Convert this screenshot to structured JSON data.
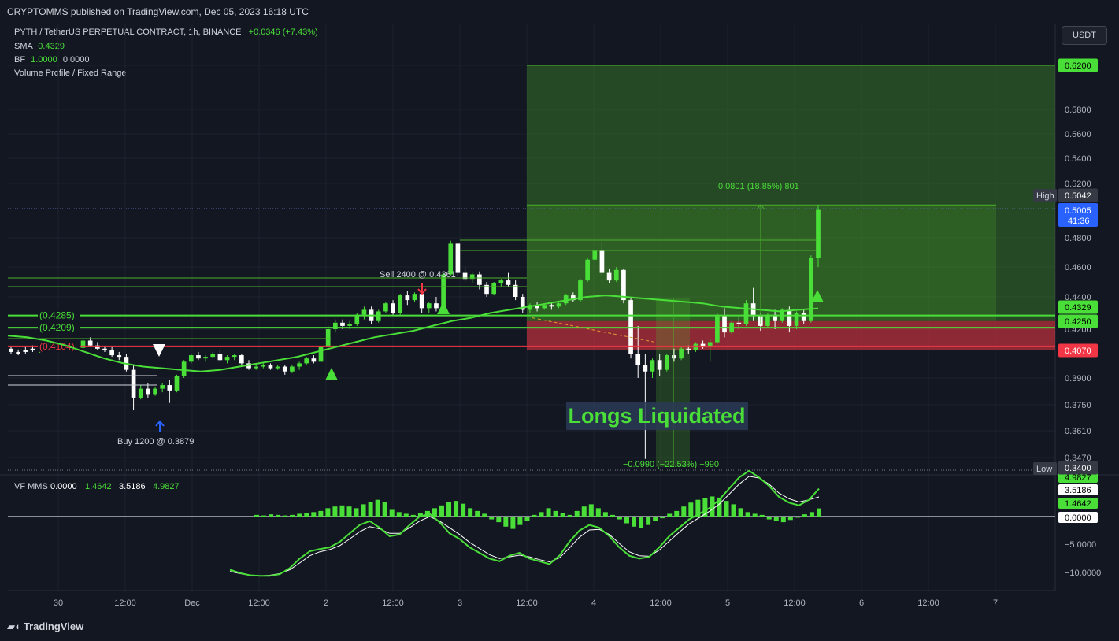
{
  "header": {
    "published": "CRYPTOMMS published on TradingView.com, Dec 05, 2023 16:18 UTC",
    "symbol": "PYTH / TetherUS PERPETUAL CONTRACT, 1h, BINANCE",
    "change": "+0.0346 (+7.43%)",
    "sma_label": "SMA",
    "sma_value": "0.4329",
    "bf_label": "BF",
    "bf_v1": "1.0000",
    "bf_v2": "0.0000",
    "vp_label": "Volume Profile / Fixed Range",
    "currency_button": "USDT",
    "brand": "TradingView"
  },
  "colors": {
    "background": "#131722",
    "up": "#4ade38",
    "down": "#ffffff",
    "sma": "#4ade38",
    "red": "#f23645",
    "green_zone": "#4caf2a",
    "price_blue": "#2962ff"
  },
  "chart_data": [
    {
      "type": "candlestick",
      "title": "PYTH / TetherUS PERPETUAL CONTRACT, 1h, BINANCE",
      "x_ticks": [
        "30",
        "12:00",
        "Dec",
        "12:00",
        "2",
        "12:00",
        "3",
        "12:00",
        "4",
        "12:00",
        "5",
        "12:00",
        "6",
        "12:00",
        "7"
      ],
      "y_ticks": [
        "0.5800",
        "0.5600",
        "0.5400",
        "0.5200",
        "0.4800",
        "0.4600",
        "0.4400",
        "0.4200",
        "0.3900",
        "0.3750",
        "0.3610",
        "0.3470"
      ],
      "y_range": [
        0.34,
        0.62
      ],
      "price_labels": {
        "target": "0.6200",
        "high_label": "High",
        "high": "0.5042",
        "current": "0.5005",
        "countdown": "41:36",
        "sma": "0.4329",
        "level": "0.4250",
        "stop": "0.4070",
        "low_label": "Low",
        "low": "0.3400"
      },
      "levels": [
        {
          "label": "(0.4285)",
          "value": 0.4285,
          "color": "#4ade38"
        },
        {
          "label": "(0.4209)",
          "value": 0.4209,
          "color": "#4ade38"
        },
        {
          "label": "(0.4104)",
          "value": 0.4104,
          "color": "#f23645"
        }
      ],
      "annotations": {
        "buy": "Buy 1200 @ 0.3879",
        "sell": "Sell 2400 @ 0.4361",
        "long_measure": "0.0801 (18.85%) 801",
        "short_measure": "−0.0990 (−22.53%) −990",
        "liquidation": "Longs Liquidated"
      },
      "long_position": {
        "entry": 0.425,
        "target": 0.62,
        "stop": 0.407
      },
      "candles": [
        [
          0.408,
          0.4095,
          0.406,
          0.405
        ],
        [
          0.406,
          0.4075,
          0.405,
          0.404
        ],
        [
          0.407,
          0.409,
          0.406,
          0.405
        ],
        [
          0.408,
          0.41,
          0.407,
          0.406
        ],
        [
          0.407,
          0.4085,
          0.4075,
          0.4055
        ],
        [
          0.4075,
          0.412,
          0.411,
          0.407
        ],
        [
          0.411,
          0.413,
          0.409,
          0.4085
        ],
        [
          0.409,
          0.411,
          0.408,
          0.4075
        ],
        [
          0.408,
          0.41,
          0.4095,
          0.407
        ],
        [
          0.4095,
          0.411,
          0.4085,
          0.4075
        ],
        [
          0.4085,
          0.414,
          0.413,
          0.408
        ],
        [
          0.413,
          0.415,
          0.41,
          0.4095
        ],
        [
          0.41,
          0.412,
          0.408,
          0.407
        ],
        [
          0.408,
          0.4095,
          0.407,
          0.406
        ],
        [
          0.407,
          0.409,
          0.404,
          0.403
        ],
        [
          0.404,
          0.406,
          0.403,
          0.401
        ],
        [
          0.403,
          0.405,
          0.395,
          0.394
        ],
        [
          0.395,
          0.398,
          0.379,
          0.372
        ],
        [
          0.379,
          0.386,
          0.384,
          0.378
        ],
        [
          0.384,
          0.387,
          0.381,
          0.379
        ],
        [
          0.381,
          0.385,
          0.384,
          0.38
        ],
        [
          0.384,
          0.387,
          0.386,
          0.382
        ],
        [
          0.386,
          0.389,
          0.383,
          0.376
        ],
        [
          0.383,
          0.392,
          0.391,
          0.382
        ],
        [
          0.391,
          0.401,
          0.4,
          0.39
        ],
        [
          0.4,
          0.405,
          0.404,
          0.399
        ],
        [
          0.404,
          0.406,
          0.402,
          0.401
        ],
        [
          0.402,
          0.404,
          0.403,
          0.4
        ],
        [
          0.403,
          0.406,
          0.405,
          0.402
        ],
        [
          0.405,
          0.407,
          0.401,
          0.4
        ],
        [
          0.401,
          0.404,
          0.403,
          0.399
        ],
        [
          0.403,
          0.405,
          0.404,
          0.401
        ],
        [
          0.404,
          0.405,
          0.399,
          0.397
        ],
        [
          0.399,
          0.401,
          0.396,
          0.395
        ],
        [
          0.396,
          0.398,
          0.397,
          0.395
        ],
        [
          0.397,
          0.399,
          0.398,
          0.396
        ],
        [
          0.398,
          0.399,
          0.396,
          0.395
        ],
        [
          0.396,
          0.398,
          0.397,
          0.395
        ],
        [
          0.397,
          0.398,
          0.394,
          0.392
        ],
        [
          0.394,
          0.398,
          0.397,
          0.393
        ],
        [
          0.397,
          0.4,
          0.399,
          0.395
        ],
        [
          0.399,
          0.403,
          0.402,
          0.398
        ],
        [
          0.402,
          0.404,
          0.4,
          0.399
        ],
        [
          0.4,
          0.41,
          0.409,
          0.399
        ],
        [
          0.409,
          0.422,
          0.42,
          0.408
        ],
        [
          0.42,
          0.426,
          0.424,
          0.418
        ],
        [
          0.424,
          0.426,
          0.422,
          0.42
        ],
        [
          0.422,
          0.425,
          0.423,
          0.42
        ],
        [
          0.423,
          0.43,
          0.429,
          0.422
        ],
        [
          0.429,
          0.434,
          0.432,
          0.426
        ],
        [
          0.432,
          0.434,
          0.425,
          0.423
        ],
        [
          0.425,
          0.432,
          0.431,
          0.424
        ],
        [
          0.431,
          0.437,
          0.436,
          0.43
        ],
        [
          0.436,
          0.438,
          0.43,
          0.429
        ],
        [
          0.43,
          0.442,
          0.441,
          0.429
        ],
        [
          0.441,
          0.444,
          0.438,
          0.435
        ],
        [
          0.438,
          0.443,
          0.442,
          0.437
        ],
        [
          0.442,
          0.444,
          0.433,
          0.43
        ],
        [
          0.433,
          0.437,
          0.436,
          0.43
        ],
        [
          0.436,
          0.44,
          0.433,
          0.431
        ],
        [
          0.433,
          0.456,
          0.455,
          0.432
        ],
        [
          0.455,
          0.478,
          0.476,
          0.454
        ],
        [
          0.476,
          0.477,
          0.456,
          0.454
        ],
        [
          0.456,
          0.46,
          0.452,
          0.45
        ],
        [
          0.452,
          0.456,
          0.455,
          0.449
        ],
        [
          0.455,
          0.457,
          0.448,
          0.445
        ],
        [
          0.448,
          0.45,
          0.442,
          0.44
        ],
        [
          0.442,
          0.45,
          0.449,
          0.441
        ],
        [
          0.449,
          0.452,
          0.451,
          0.447
        ],
        [
          0.451,
          0.456,
          0.448,
          0.447
        ],
        [
          0.448,
          0.451,
          0.44,
          0.438
        ],
        [
          0.44,
          0.442,
          0.432,
          0.43
        ],
        [
          0.432,
          0.436,
          0.435,
          0.43
        ],
        [
          0.435,
          0.437,
          0.433,
          0.431
        ],
        [
          0.433,
          0.436,
          0.435,
          0.432
        ],
        [
          0.435,
          0.437,
          0.434,
          0.432
        ],
        [
          0.434,
          0.437,
          0.436,
          0.433
        ],
        [
          0.436,
          0.442,
          0.441,
          0.435
        ],
        [
          0.441,
          0.443,
          0.438,
          0.437
        ],
        [
          0.438,
          0.452,
          0.451,
          0.437
        ],
        [
          0.451,
          0.466,
          0.465,
          0.45
        ],
        [
          0.465,
          0.472,
          0.471,
          0.464
        ],
        [
          0.471,
          0.477,
          0.456,
          0.454
        ],
        [
          0.456,
          0.459,
          0.451,
          0.449
        ],
        [
          0.451,
          0.46,
          0.458,
          0.45
        ],
        [
          0.458,
          0.459,
          0.438,
          0.436
        ],
        [
          0.438,
          0.44,
          0.405,
          0.402
        ],
        [
          0.405,
          0.422,
          0.398,
          0.39
        ],
        [
          0.398,
          0.405,
          0.394,
          0.346
        ],
        [
          0.394,
          0.402,
          0.401,
          0.39
        ],
        [
          0.401,
          0.405,
          0.395,
          0.391
        ],
        [
          0.395,
          0.405,
          0.404,
          0.394
        ],
        [
          0.404,
          0.408,
          0.402,
          0.4
        ],
        [
          0.402,
          0.409,
          0.408,
          0.401
        ],
        [
          0.408,
          0.41,
          0.407,
          0.405
        ],
        [
          0.407,
          0.412,
          0.411,
          0.406
        ],
        [
          0.411,
          0.413,
          0.409,
          0.408
        ],
        [
          0.409,
          0.414,
          0.412,
          0.4
        ],
        [
          0.412,
          0.43,
          0.428,
          0.411
        ],
        [
          0.428,
          0.433,
          0.418,
          0.415
        ],
        [
          0.418,
          0.425,
          0.424,
          0.417
        ],
        [
          0.424,
          0.428,
          0.423,
          0.42
        ],
        [
          0.423,
          0.438,
          0.436,
          0.422
        ],
        [
          0.436,
          0.446,
          0.428,
          0.425
        ],
        [
          0.428,
          0.43,
          0.422,
          0.419
        ],
        [
          0.422,
          0.43,
          0.429,
          0.421
        ],
        [
          0.429,
          0.432,
          0.425,
          0.42
        ],
        [
          0.425,
          0.433,
          0.432,
          0.424
        ],
        [
          0.432,
          0.434,
          0.422,
          0.418
        ],
        [
          0.422,
          0.431,
          0.43,
          0.42
        ],
        [
          0.43,
          0.432,
          0.425,
          0.423
        ],
        [
          0.425,
          0.468,
          0.466,
          0.424
        ],
        [
          0.466,
          0.5042,
          0.5005,
          0.46
        ]
      ],
      "sma": [
        [
          0.416,
          0.415,
          0.413,
          0.41,
          0.406,
          0.402,
          0.399,
          0.397,
          0.396,
          0.395,
          0.394,
          0.395,
          0.397,
          0.399,
          0.401,
          0.403,
          0.406,
          0.409,
          0.412,
          0.415,
          0.417,
          0.419,
          0.422,
          0.425,
          0.427,
          0.43,
          0.432,
          0.434,
          0.436,
          0.438,
          0.44,
          0.441,
          0.44,
          0.439,
          0.438,
          0.437,
          0.436,
          0.434,
          0.433,
          0.432,
          0.431,
          0.432,
          0.4329
        ]
      ],
      "oscillator": {
        "label": "VF MMS",
        "values": [
          "0.0000",
          "1.4642",
          "3.5186",
          "4.9827"
        ],
        "ticks": [
          "4.9827",
          "3.5186",
          "1.4642",
          "0.0000",
          "−5.0000",
          "−10.0000"
        ],
        "range": [
          -12,
          6
        ],
        "histogram": [
          0.3,
          0.2,
          0.4,
          0.3,
          0.2,
          0.3,
          0.5,
          0.6,
          0.8,
          1.0,
          1.5,
          1.8,
          2.0,
          1.8,
          1.5,
          2.2,
          2.6,
          3.0,
          2.6,
          1.2,
          0.8,
          0.5,
          0.3,
          0.6,
          1.0,
          1.5,
          2.0,
          2.6,
          2.8,
          2.3,
          1.5,
          1.0,
          0.5,
          -0.5,
          -1.0,
          -1.8,
          -2.2,
          -1.5,
          -0.8,
          0.3,
          0.8,
          1.5,
          1.0,
          0.6,
          0.3,
          1.0,
          1.8,
          2.2,
          1.5,
          0.8,
          0.3,
          -0.5,
          -1.2,
          -1.8,
          -2.0,
          -1.5,
          -0.8,
          -0.3,
          0.5,
          1.0,
          1.8,
          2.5,
          3.0,
          3.3,
          3.6,
          3.4,
          2.8,
          2.2,
          1.5,
          0.8,
          0.5,
          0.3,
          -0.5,
          -0.8,
          -1.0,
          -0.6,
          -0.2,
          0.4,
          0.8,
          1.4642
        ],
        "fast": [
          -9.5,
          -10.1,
          -10.5,
          -10.6,
          -10.6,
          -10.3,
          -9.2,
          -7.5,
          -6.2,
          -5.8,
          -5.5,
          -4.5,
          -3.0,
          -1.5,
          -0.8,
          -2.0,
          -3.5,
          -3.2,
          -1.5,
          0.0,
          0.5,
          -1.0,
          -3.0,
          -4.0,
          -5.5,
          -6.5,
          -7.5,
          -8.0,
          -7.0,
          -6.5,
          -7.5,
          -8.0,
          -8.5,
          -7.0,
          -4.5,
          -2.5,
          -1.5,
          -2.0,
          -3.5,
          -5.5,
          -7.0,
          -7.5,
          -7.2,
          -5.5,
          -3.5,
          -2.0,
          -0.5,
          0.5,
          1.5,
          3.0,
          5.0,
          7.0,
          8.2,
          7.0,
          5.5,
          3.5,
          2.5,
          2.0,
          3.0,
          4.98
        ],
        "slow": [
          -9.8,
          -10.2,
          -10.5,
          -10.6,
          -10.5,
          -10.2,
          -9.5,
          -8.3,
          -7.0,
          -6.3,
          -5.9,
          -5.2,
          -4.0,
          -2.7,
          -1.8,
          -2.2,
          -3.0,
          -3.0,
          -2.0,
          -0.8,
          0.0,
          -0.8,
          -2.0,
          -3.2,
          -4.6,
          -5.7,
          -6.8,
          -7.5,
          -7.2,
          -6.9,
          -7.2,
          -7.7,
          -8.1,
          -7.4,
          -5.6,
          -3.7,
          -2.4,
          -2.3,
          -3.2,
          -4.8,
          -6.3,
          -7.0,
          -7.1,
          -6.0,
          -4.4,
          -2.8,
          -1.3,
          -0.2,
          0.9,
          2.2,
          4.0,
          5.8,
          7.2,
          6.9,
          5.8,
          4.2,
          3.2,
          2.6,
          3.0,
          3.5186
        ]
      }
    }
  ]
}
